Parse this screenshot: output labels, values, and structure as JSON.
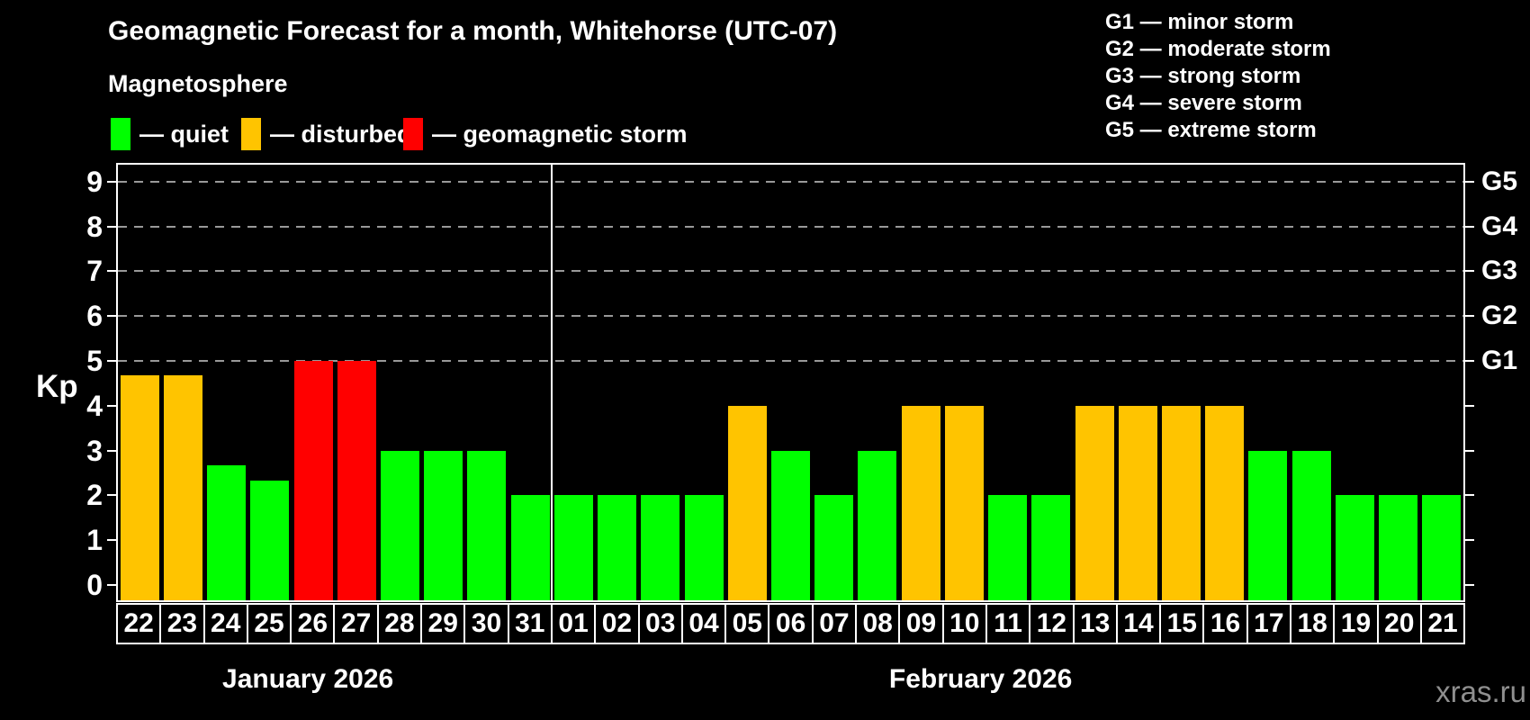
{
  "title": "Geomagnetic Forecast for a month, Whitehorse (UTC-07)",
  "subtitle": "Magnetosphere",
  "legend": {
    "items": [
      {
        "name": "quiet",
        "label": "— quiet",
        "color": "#00ff00"
      },
      {
        "name": "disturbed",
        "label": "— disturbed",
        "color": "#ffc400"
      },
      {
        "name": "storm",
        "label": "— geomagnetic storm",
        "color": "#ff0000"
      }
    ]
  },
  "g_legend": {
    "items": [
      "G1 — minor storm",
      "G2 — moderate storm",
      "G3 — strong storm",
      "G4 — severe storm",
      "G5 — extreme storm"
    ]
  },
  "watermark": "xras.ru",
  "chart_data": {
    "type": "bar",
    "title": "Geomagnetic Forecast for a month, Whitehorse (UTC-07)",
    "subtitle": "Magnetosphere",
    "ylabel": "Kp",
    "ylim": [
      0,
      9
    ],
    "yticks": [
      0,
      1,
      2,
      3,
      4,
      5,
      6,
      7,
      8,
      9
    ],
    "gridlines": {
      "values": [
        5,
        6,
        7,
        8,
        9
      ],
      "style": "dashed",
      "color": "#999999"
    },
    "right_axis_labels": [
      {
        "value": 5,
        "label": "G1"
      },
      {
        "value": 6,
        "label": "G2"
      },
      {
        "value": 7,
        "label": "G3"
      },
      {
        "value": 8,
        "label": "G4"
      },
      {
        "value": 9,
        "label": "G5"
      }
    ],
    "state_colors": {
      "quiet": "#00ff00",
      "disturbed": "#ffc400",
      "storm": "#ff0000"
    },
    "months": [
      {
        "label": "January 2026",
        "days": [
          "22",
          "23",
          "24",
          "25",
          "26",
          "27",
          "28",
          "29",
          "30",
          "31"
        ]
      },
      {
        "label": "February 2026",
        "days": [
          "01",
          "02",
          "03",
          "04",
          "05",
          "06",
          "07",
          "08",
          "09",
          "10",
          "11",
          "12",
          "13",
          "14",
          "15",
          "16",
          "17",
          "18",
          "19",
          "20",
          "21"
        ]
      }
    ],
    "series": [
      {
        "day": "22",
        "month": "January 2026",
        "kp": 4.67,
        "state": "disturbed"
      },
      {
        "day": "23",
        "month": "January 2026",
        "kp": 4.67,
        "state": "disturbed"
      },
      {
        "day": "24",
        "month": "January 2026",
        "kp": 2.67,
        "state": "quiet"
      },
      {
        "day": "25",
        "month": "January 2026",
        "kp": 2.33,
        "state": "quiet"
      },
      {
        "day": "26",
        "month": "January 2026",
        "kp": 5,
        "state": "storm"
      },
      {
        "day": "27",
        "month": "January 2026",
        "kp": 5,
        "state": "storm"
      },
      {
        "day": "28",
        "month": "January 2026",
        "kp": 3,
        "state": "quiet"
      },
      {
        "day": "29",
        "month": "January 2026",
        "kp": 3,
        "state": "quiet"
      },
      {
        "day": "30",
        "month": "January 2026",
        "kp": 3,
        "state": "quiet"
      },
      {
        "day": "31",
        "month": "January 2026",
        "kp": 2,
        "state": "quiet"
      },
      {
        "day": "01",
        "month": "February 2026",
        "kp": 2,
        "state": "quiet"
      },
      {
        "day": "02",
        "month": "February 2026",
        "kp": 2,
        "state": "quiet"
      },
      {
        "day": "03",
        "month": "February 2026",
        "kp": 2,
        "state": "quiet"
      },
      {
        "day": "04",
        "month": "February 2026",
        "kp": 2,
        "state": "quiet"
      },
      {
        "day": "05",
        "month": "February 2026",
        "kp": 4,
        "state": "disturbed"
      },
      {
        "day": "06",
        "month": "February 2026",
        "kp": 3,
        "state": "quiet"
      },
      {
        "day": "07",
        "month": "February 2026",
        "kp": 2,
        "state": "quiet"
      },
      {
        "day": "08",
        "month": "February 2026",
        "kp": 3,
        "state": "quiet"
      },
      {
        "day": "09",
        "month": "February 2026",
        "kp": 4,
        "state": "disturbed"
      },
      {
        "day": "10",
        "month": "February 2026",
        "kp": 4,
        "state": "disturbed"
      },
      {
        "day": "11",
        "month": "February 2026",
        "kp": 2,
        "state": "quiet"
      },
      {
        "day": "12",
        "month": "February 2026",
        "kp": 2,
        "state": "quiet"
      },
      {
        "day": "13",
        "month": "February 2026",
        "kp": 4,
        "state": "disturbed"
      },
      {
        "day": "14",
        "month": "February 2026",
        "kp": 4,
        "state": "disturbed"
      },
      {
        "day": "15",
        "month": "February 2026",
        "kp": 4,
        "state": "disturbed"
      },
      {
        "day": "16",
        "month": "February 2026",
        "kp": 4,
        "state": "disturbed"
      },
      {
        "day": "17",
        "month": "February 2026",
        "kp": 3,
        "state": "quiet"
      },
      {
        "day": "18",
        "month": "February 2026",
        "kp": 3,
        "state": "quiet"
      },
      {
        "day": "19",
        "month": "February 2026",
        "kp": 2,
        "state": "quiet"
      },
      {
        "day": "20",
        "month": "February 2026",
        "kp": 2,
        "state": "quiet"
      },
      {
        "day": "21",
        "month": "February 2026",
        "kp": 2,
        "state": "quiet"
      }
    ]
  }
}
